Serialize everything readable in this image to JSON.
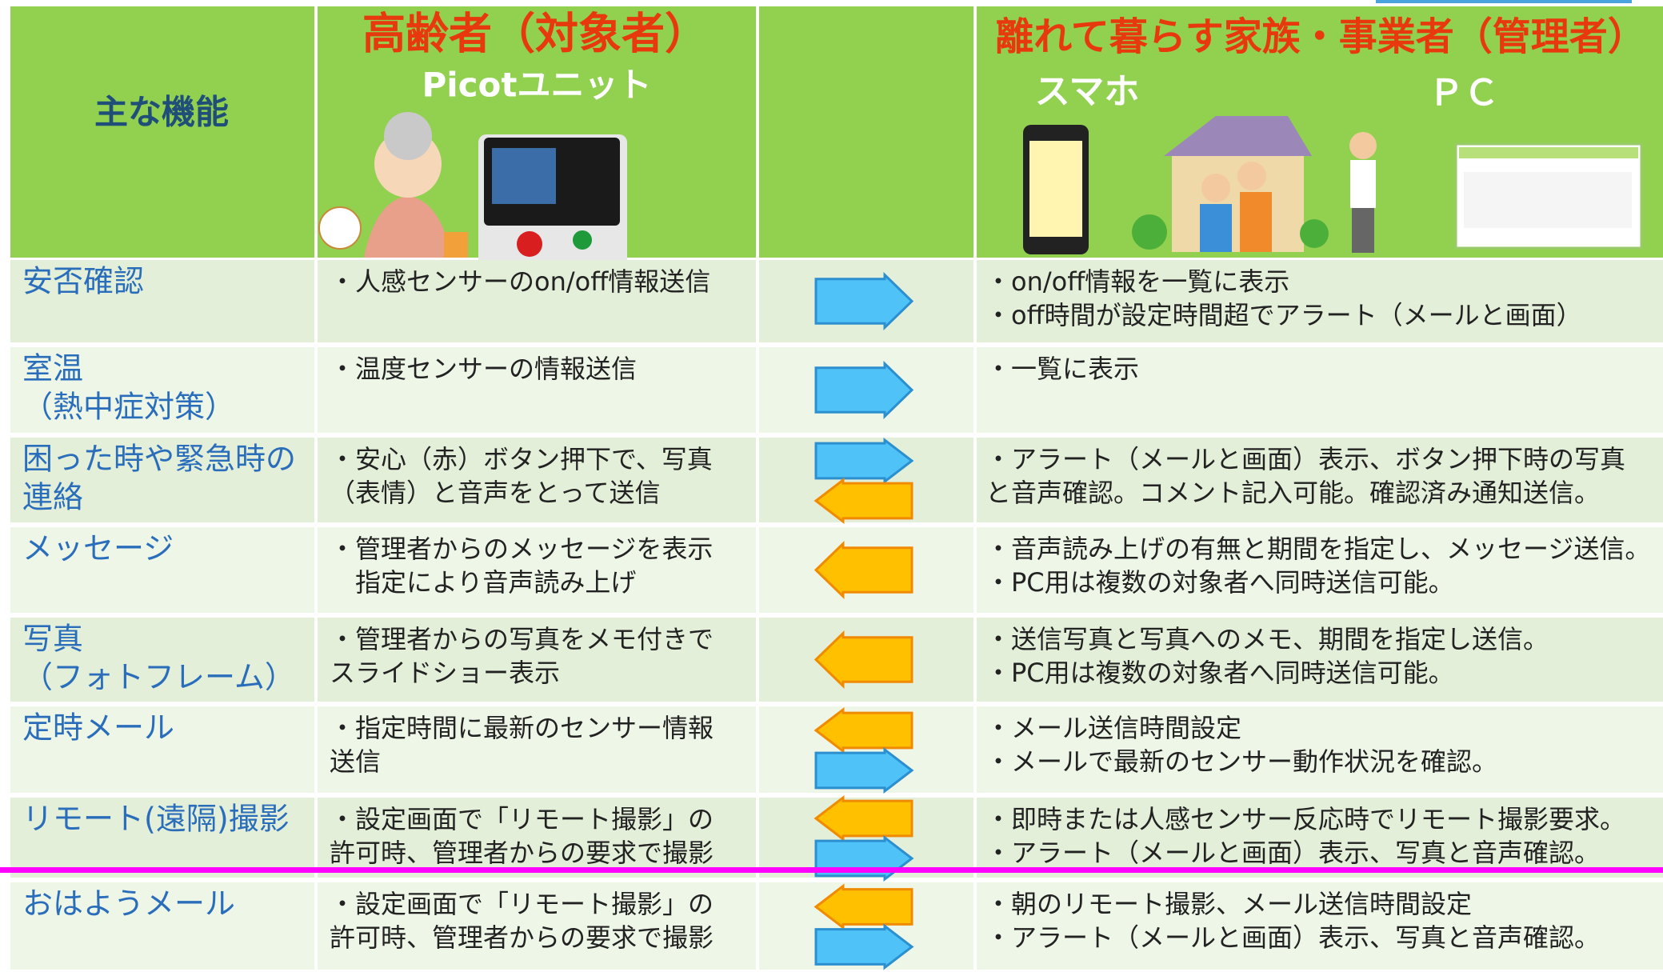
{
  "header": {
    "function": "主な機能",
    "elder_title": "高齢者（対象者）",
    "elder_sub": "Picotユニット",
    "family_title": "離れて暮らす家族・事業者（管理者）",
    "smartphone": "スマホ",
    "pc": "ＰＣ"
  },
  "rows": [
    {
      "function": [
        "安否確認"
      ],
      "elder": [
        "・人感センサーのon/off情報送信"
      ],
      "manager": [
        "・on/off情報を一覧に表示",
        "・off時間が設定時間超でアラート（メールと画面）"
      ]
    },
    {
      "function": [
        "室温",
        "（熱中症対策）"
      ],
      "elder": [
        "・温度センサーの情報送信"
      ],
      "manager": [
        "・一覧に表示"
      ]
    },
    {
      "function": [
        "困った時や緊急時の",
        "連絡"
      ],
      "elder": [
        "・安心（赤）ボタン押下で、写真",
        "（表情）と音声をとって送信"
      ],
      "manager": [
        "・アラート（メールと画面）表示、ボタン押下時の写真",
        "と音声確認。コメント記入可能。確認済み通知送信。"
      ]
    },
    {
      "function": [
        "メッセージ"
      ],
      "elder": [
        "・管理者からのメッセージを表示",
        "　指定により音声読み上げ"
      ],
      "manager": [
        "・音声読み上げの有無と期間を指定し、メッセージ送信。",
        "・PC用は複数の対象者へ同時送信可能。"
      ]
    },
    {
      "function": [
        "写真",
        "（フォトフレーム）"
      ],
      "elder": [
        "・管理者からの写真をメモ付きで",
        "スライドショー表示"
      ],
      "manager": [
        "・送信写真と写真へのメモ、期間を指定し送信。",
        "・PC用は複数の対象者へ同時送信可能。"
      ]
    },
    {
      "function": [
        "定時メール"
      ],
      "elder": [
        "・指定時間に最新のセンサー情報",
        "送信"
      ],
      "manager": [
        "・メール送信時間設定",
        "・メールで最新のセンサー動作状況を確認。"
      ]
    },
    {
      "function": [
        "リモート(遠隔)撮影"
      ],
      "elder": [
        "・設定画面で「リモート撮影」の",
        "許可時、管理者からの要求で撮影"
      ],
      "manager": [
        "・即時または人感センサー反応時でリモート撮影要求。",
        "・アラート（メールと画面）表示、写真と音声確認。"
      ]
    },
    {
      "function": [
        "おはようメール"
      ],
      "elder": [
        "・設定画面で「リモート撮影」の",
        "許可時、管理者からの要求で撮影"
      ],
      "manager": [
        "・朝のリモート撮影、メール送信時間設定",
        "・アラート（メールと画面）表示、写真と音声確認。"
      ]
    }
  ]
}
